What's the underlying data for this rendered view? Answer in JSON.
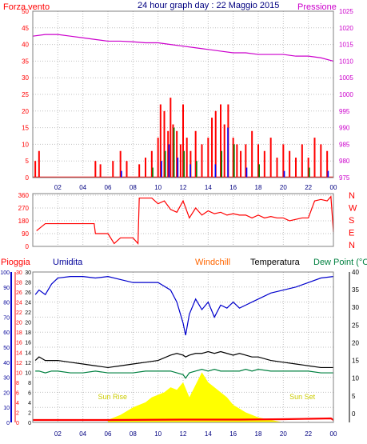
{
  "colors": {
    "wind": "#ff0000",
    "gust_blue": "#0000ff",
    "gust_green": "#008000",
    "pressure": "#cc00cc",
    "humidity": "#0000cc",
    "windchill": "#ff6600",
    "temperature": "#000000",
    "dewpoint": "#008040",
    "rain": "#ff0000",
    "sun": "#ffff00",
    "sunlabel": "#cccc00",
    "grid": "#c0c0c0"
  },
  "chart_data": [
    {
      "type": "bar",
      "title": "24 hour graph day : 22 Maggio 2015",
      "left_label": "Forza vento",
      "right_label": "Pressione",
      "ylim": [
        0,
        50
      ],
      "y2lim": [
        975,
        1025
      ],
      "yticks": [
        "0",
        "5",
        "10",
        "15",
        "20",
        "25",
        "30",
        "35",
        "40",
        "45",
        "50"
      ],
      "y2ticks": [
        "975",
        "980",
        "985",
        "990",
        "995",
        "1000",
        "1005",
        "1010",
        "1015",
        "1020",
        "1025"
      ],
      "xticks": [
        "02",
        "04",
        "06",
        "08",
        "10",
        "12",
        "14",
        "16",
        "18",
        "20",
        "22",
        "00"
      ],
      "xlim": [
        0,
        24
      ],
      "pressure_x": [
        0,
        1,
        2,
        3,
        4,
        5,
        6,
        7,
        8,
        9,
        10,
        11,
        12,
        13,
        14,
        15,
        16,
        17,
        18,
        19,
        20,
        21,
        22,
        23,
        24
      ],
      "pressure": [
        1017.5,
        1018,
        1018,
        1017.5,
        1017,
        1016.5,
        1016,
        1016,
        1015.8,
        1015.5,
        1015.5,
        1015,
        1014.5,
        1014,
        1013.5,
        1013,
        1012.5,
        1012.5,
        1012,
        1012,
        1012,
        1011.5,
        1011.5,
        1011,
        1010
      ],
      "wind_x": [
        0.2,
        0.5,
        5.0,
        5.4,
        6.4,
        7.0,
        7.5,
        8.5,
        9.0,
        9.5,
        10.0,
        10.2,
        10.5,
        10.8,
        11.0,
        11.2,
        11.5,
        11.8,
        12.0,
        12.3,
        12.6,
        13.0,
        13.5,
        14.0,
        14.3,
        14.6,
        15.0,
        15.3,
        15.6,
        16.0,
        16.3,
        16.6,
        17.0,
        17.5,
        18.0,
        18.5,
        19.0,
        19.5,
        20.0,
        20.5,
        21.0,
        21.5,
        22.0,
        22.5,
        23.0,
        23.5
      ],
      "wind": [
        5,
        8,
        5,
        4,
        5,
        8,
        5,
        4,
        6,
        8,
        12,
        22,
        20,
        14,
        24,
        16,
        14,
        10,
        22,
        12,
        8,
        14,
        10,
        12,
        18,
        20,
        22,
        16,
        22,
        12,
        10,
        8,
        10,
        14,
        10,
        8,
        12,
        6,
        10,
        8,
        6,
        10,
        6,
        12,
        10,
        8
      ],
      "gust_x": [
        7.0,
        9.5,
        10.2,
        10.5,
        10.8,
        11.2,
        11.5,
        12.0,
        12.5,
        13.0,
        14.5,
        15.0,
        15.5,
        16.0,
        17.0,
        18.0,
        20.0,
        22.0,
        23.5
      ],
      "gust": [
        2,
        3,
        5,
        8,
        10,
        15,
        6,
        8,
        4,
        5,
        4,
        8,
        15,
        10,
        3,
        4,
        2,
        3,
        2
      ]
    },
    {
      "type": "line",
      "title": "",
      "right_labels": [
        "N",
        "W",
        "S",
        "E",
        "N"
      ],
      "ylim": [
        0,
        360
      ],
      "yticks": [
        "0",
        "90",
        "180",
        "270",
        "360"
      ],
      "x": [
        0.3,
        1,
        2,
        3,
        4,
        4.9,
        5.0,
        6,
        6.5,
        7,
        8,
        8.4,
        8.5,
        9,
        9.5,
        10,
        10.5,
        11,
        11.5,
        12,
        12.5,
        13,
        13.5,
        14,
        14.5,
        15,
        15.5,
        16,
        16.5,
        17,
        17.5,
        18,
        18.5,
        19,
        19.5,
        20,
        20.5,
        21,
        21.5,
        22,
        22.5,
        23,
        23.5,
        23.8,
        24
      ],
      "direction": [
        110,
        160,
        160,
        160,
        160,
        160,
        90,
        90,
        20,
        60,
        60,
        20,
        340,
        340,
        340,
        300,
        320,
        260,
        240,
        320,
        200,
        270,
        220,
        250,
        230,
        240,
        220,
        230,
        220,
        220,
        200,
        220,
        200,
        210,
        200,
        200,
        180,
        190,
        200,
        200,
        320,
        330,
        320,
        350,
        100
      ]
    },
    {
      "type": "line",
      "title": "",
      "legend": [
        "Pioggia",
        "Umidita",
        "Windchill",
        "Temperatura",
        "Dew Point (°C"
      ],
      "ylim": [
        0,
        100
      ],
      "yticks": [
        "0",
        "10",
        "20",
        "30",
        "40",
        "50",
        "60",
        "70",
        "80",
        "90",
        "100"
      ],
      "temp_ticks": [
        "0",
        "2",
        "4",
        "6",
        "8",
        "10",
        "12",
        "14",
        "16",
        "18",
        "20",
        "22",
        "24",
        "26",
        "28",
        "30"
      ],
      "right_ticks": [
        "0",
        "5",
        "10",
        "15",
        "20",
        "25",
        "30",
        "35",
        "40"
      ],
      "rain_ticks": [
        "0",
        "2",
        "4",
        "6",
        "8",
        "10",
        "12",
        "14",
        "16",
        "18",
        "20",
        "22",
        "24",
        "26",
        "28",
        "30"
      ],
      "xticks": [
        "02",
        "04",
        "06",
        "08",
        "10",
        "12",
        "14",
        "16",
        "18",
        "20",
        "22",
        "00"
      ],
      "sunrise_label": "Sun Rise",
      "sunset_label": "Sun Set",
      "x": [
        0.2,
        0.5,
        1,
        1.5,
        2,
        3,
        4,
        5,
        6,
        7,
        8,
        9,
        10,
        11,
        11.5,
        12,
        12.2,
        12.5,
        13,
        13.5,
        14,
        14.5,
        15,
        15.5,
        16,
        16.5,
        17,
        17.5,
        18,
        19,
        20,
        21,
        22,
        23,
        24
      ],
      "humidity": [
        85,
        88,
        85,
        92,
        96,
        97,
        97,
        96,
        97,
        95,
        93,
        93,
        93,
        88,
        80,
        66,
        58,
        72,
        82,
        75,
        80,
        70,
        78,
        76,
        80,
        76,
        78,
        80,
        82,
        86,
        88,
        90,
        93,
        96,
        97
      ],
      "temperature": [
        15,
        16,
        15,
        15,
        15,
        14.5,
        14,
        13.5,
        13,
        13.5,
        14,
        14.5,
        15,
        16.5,
        17,
        16.5,
        16,
        16.5,
        17,
        17,
        17.5,
        17,
        17.5,
        17,
        16.5,
        17,
        16.5,
        16,
        16,
        15,
        14.5,
        14,
        13.5,
        13,
        13
      ],
      "dewpoint": [
        12,
        12,
        11.5,
        12,
        12,
        11.5,
        11.5,
        12,
        11.5,
        11.5,
        11.5,
        12,
        12,
        12,
        11.5,
        11,
        10,
        11.5,
        12,
        12.5,
        12,
        12.5,
        12,
        12,
        12,
        12,
        12.5,
        12,
        12.5,
        12,
        12,
        12,
        12,
        11.5,
        11.5
      ],
      "sun_x": [
        6,
        7,
        8,
        9,
        9.5,
        10,
        10.5,
        11,
        11.5,
        12,
        12.5,
        13,
        13.5,
        14,
        14.5,
        15,
        15.5,
        16,
        17,
        18,
        19,
        20
      ],
      "sun": [
        0.5,
        1.5,
        3,
        4,
        5,
        5.5,
        6,
        7,
        6.5,
        8,
        5,
        7.5,
        10,
        8,
        7,
        6,
        5,
        3.5,
        2,
        1,
        0.5,
        0
      ],
      "rain_x": [
        0,
        6,
        12,
        16.5,
        20,
        22,
        23.8,
        24
      ],
      "rain": [
        0,
        0,
        0.5,
        0.5,
        1,
        1.5,
        2,
        0
      ]
    }
  ]
}
